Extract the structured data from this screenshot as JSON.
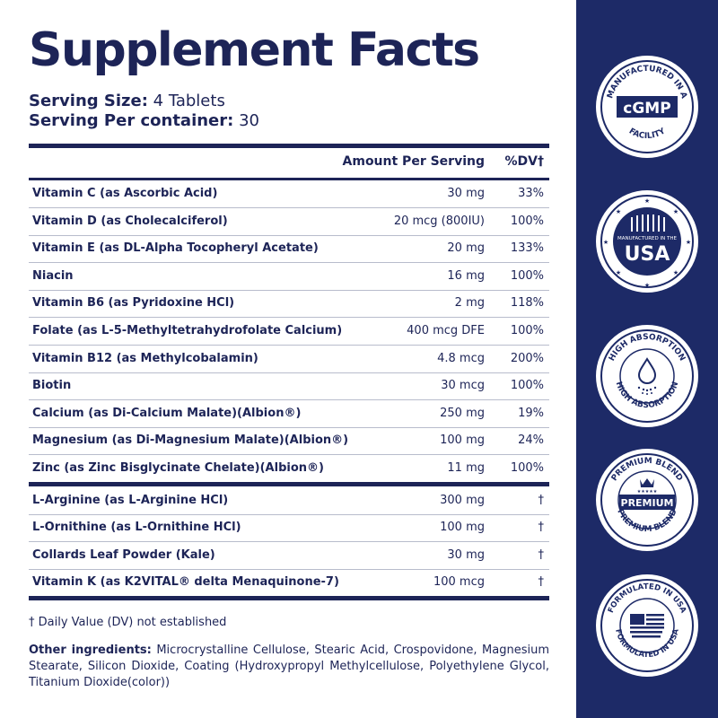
{
  "title": "Supplement Facts",
  "serving": {
    "size_label": "Serving Size:",
    "size_value": " 4 Tablets",
    "per_label": "Serving Per container:",
    "per_value": " 30"
  },
  "table": {
    "amount_header": "Amount Per Serving",
    "dv_header": "%DV†",
    "group1": [
      {
        "name": "Vitamin C (as Ascorbic Acid)",
        "amount": "30 mg",
        "dv": "33%"
      },
      {
        "name": "Vitamin D (as Cholecalciferol)",
        "amount": "20 mcg (800IU)",
        "dv": "100%"
      },
      {
        "name": "Vitamin E (as DL-Alpha Tocopheryl Acetate)",
        "amount": "20 mg",
        "dv": "133%"
      },
      {
        "name": "Niacin",
        "amount": "16 mg",
        "dv": "100%"
      },
      {
        "name": "Vitamin B6 (as Pyridoxine HCl)",
        "amount": "2 mg",
        "dv": "118%"
      },
      {
        "name": "Folate (as L-5-Methyltetrahydrofolate Calcium)",
        "amount": "400 mcg DFE",
        "dv": "100%"
      },
      {
        "name": "Vitamin B12 (as Methylcobalamin)",
        "amount": "4.8 mcg",
        "dv": "200%"
      },
      {
        "name": "Biotin",
        "amount": "30 mcg",
        "dv": "100%"
      },
      {
        "name": "Calcium (as Di-Calcium Malate)(Albion®)",
        "amount": "250 mg",
        "dv": "19%"
      },
      {
        "name": "Magnesium (as Di-Magnesium Malate)(Albion®)",
        "amount": "100 mg",
        "dv": "24%"
      },
      {
        "name": "Zinc (as Zinc Bisglycinate Chelate)(Albion®)",
        "amount": "11 mg",
        "dv": "100%"
      }
    ],
    "group2": [
      {
        "name": "L-Arginine (as L-Arginine HCl)",
        "amount": "300 mg",
        "dv": "†"
      },
      {
        "name": "L-Ornithine (as L-Ornithine HCl)",
        "amount": "100 mg",
        "dv": "†"
      },
      {
        "name": "Collards Leaf Powder (Kale)",
        "amount": "30 mg",
        "dv": "†"
      },
      {
        "name": "Vitamin K (as K2VITAL® delta Menaquinone-7)",
        "amount": "100 mcg",
        "dv": "†"
      }
    ]
  },
  "footnote": "† Daily Value (DV) not established",
  "other": {
    "label": "Other ingredients:",
    "text": " Microcrystalline Cellulose, Stearic Acid, Crospovidone, Magnesium Stearate, Silicon Dioxide, Coating (Hydroxypropyl Methylcellulose, Polyethylene Glycol, Titanium Dioxide(color))"
  },
  "badges": {
    "cgmp": {
      "top": "MANUFACTURED IN A",
      "center": "cGMP",
      "bottom": "FACILITY"
    },
    "usa": {
      "top": "MANUFACTURED IN THE",
      "center": "USA"
    },
    "absorption": {
      "top": "HIGH ABSORPTION",
      "bottom": "HIGH ABSORPTION"
    },
    "premium": {
      "top": "PREMIUM BLEND",
      "center": "PREMIUM",
      "bottom": "PREMIUM BLEND"
    },
    "formulated": {
      "top": "FORMULATED IN USA",
      "bottom": "FORMULATED IN USA"
    }
  },
  "colors": {
    "navy": "#1d2457",
    "panel": "#1d2a67",
    "divider": "#b8bccc"
  }
}
